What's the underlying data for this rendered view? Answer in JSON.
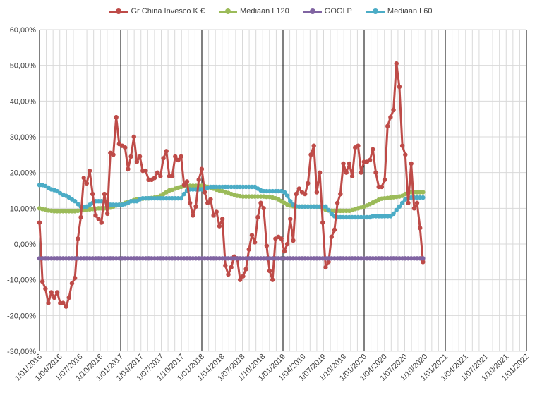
{
  "chart_data": {
    "type": "line",
    "title": "",
    "xlabel": "",
    "ylabel": "",
    "ylim": [
      -30,
      60
    ],
    "y_ticks": [
      "60,00%",
      "50,00%",
      "40,00%",
      "30,00%",
      "20,00%",
      "10,00%",
      "0,00%",
      "-10,00%",
      "-20,00%",
      "-30,00%"
    ],
    "x_tick_labels": [
      "1/01/2016",
      "1/04/2016",
      "1/07/2016",
      "1/10/2016",
      "1/01/2017",
      "1/04/2017",
      "1/07/2017",
      "1/10/2017",
      "1/01/2018",
      "1/04/2018",
      "1/07/2018",
      "1/10/2018",
      "1/01/2019",
      "1/04/2019",
      "1/07/2019",
      "1/10/2019",
      "1/01/2020",
      "1/04/2020",
      "1/07/2020",
      "1/10/2020",
      "1/01/2021",
      "1/04/2021",
      "1/07/2021",
      "1/10/2021",
      "1/01/2022"
    ],
    "x_range_months": [
      0,
      72
    ],
    "gridlines": "horizontal major, light vertical minor, black vertical at each year start",
    "legend_position": "top",
    "series": [
      {
        "name": "Gr China Invesco K €",
        "color": "#be4b48",
        "values": [
          6,
          -10.5,
          -12.5,
          -16.5,
          -13.5,
          -15,
          -13.5,
          -16.5,
          -16.5,
          -17.5,
          -15,
          -11,
          -9.5,
          1.5,
          7.5,
          18.5,
          17,
          20.5,
          14,
          8,
          7,
          6,
          14,
          8.5,
          25.5,
          25,
          35.5,
          28,
          27.5,
          27,
          21,
          24.5,
          30,
          23,
          24.5,
          20.5,
          20.5,
          18,
          18,
          18.5,
          20,
          19,
          24,
          26,
          19,
          19,
          24.5,
          23.5,
          24.5,
          16.5,
          17.5,
          11.5,
          8,
          10.5,
          18,
          21,
          14.5,
          11.5,
          12.5,
          8,
          9,
          5,
          7,
          -6,
          -8.5,
          -6.5,
          -3.5,
          -4,
          -10,
          -9,
          -7,
          -1.5,
          2.5,
          0.5,
          7.5,
          11.5,
          10,
          -0.5,
          -7.5,
          -10,
          1.5,
          2,
          1.5,
          -2,
          0,
          7,
          1,
          14,
          15.5,
          14.5,
          14,
          17,
          25,
          27.5,
          14.5,
          20,
          6,
          -6.5,
          -5,
          2,
          4,
          11.5,
          14,
          22.5,
          20,
          22.5,
          19,
          27,
          27.5,
          20,
          23,
          23,
          23.5,
          26.5,
          20,
          16,
          16,
          18,
          33,
          35.5,
          37.5,
          50.5,
          44,
          27.5,
          25,
          11.5,
          22.5,
          10,
          11.5,
          4.5,
          -5
        ]
      },
      {
        "name": "Mediaan L120",
        "color": "#9bbb59",
        "values": [
          10,
          9.8,
          9.6,
          9.4,
          9.3,
          9.2,
          9.2,
          9.2,
          9.2,
          9.2,
          9.2,
          9.2,
          9.2,
          9.3,
          9.4,
          9.5,
          9.6,
          9.7,
          9.8,
          9.9,
          10,
          10,
          10,
          10,
          10.2,
          10.5,
          10.8,
          11,
          11.2,
          11.5,
          11.8,
          12,
          12.3,
          12.5,
          12.6,
          12.7,
          12.8,
          12.8,
          12.9,
          13,
          13.2,
          13.5,
          14,
          14.5,
          15,
          15.2,
          15.5,
          15.8,
          16,
          16.2,
          16.3,
          16.3,
          16.3,
          16.3,
          16.3,
          16.3,
          16.2,
          16,
          15.8,
          15.5,
          15.2,
          15,
          14.8,
          14.5,
          14.3,
          14,
          13.8,
          13.5,
          13.4,
          13.3,
          13.3,
          13.3,
          13.3,
          13.3,
          13.3,
          13.3,
          13.3,
          13.2,
          13.2,
          13,
          12.8,
          12.5,
          12,
          11.5,
          11,
          10.8,
          10.6,
          10.5,
          10.5,
          10.5,
          10.5,
          10.5,
          10.5,
          10.5,
          10.5,
          10.3,
          10,
          9.6,
          9.4,
          9.3,
          9.3,
          9.3,
          9.3,
          9.3,
          9.3,
          9.3,
          9.5,
          9.8,
          10,
          10.2,
          10.5,
          10.8,
          11.2,
          11.6,
          12,
          12.4,
          12.7,
          12.8,
          12.9,
          13,
          13.1,
          13.2,
          13.3,
          13.5,
          14,
          14.3,
          14.5,
          14.5,
          14.5,
          14.5,
          14.5
        ]
      },
      {
        "name": "GOGI P",
        "color": "#8064a2",
        "values": [
          -4,
          -4,
          -4,
          -4,
          -4,
          -4,
          -4,
          -4,
          -4,
          -4,
          -4,
          -4,
          -4,
          -4,
          -4,
          -4,
          -4,
          -4,
          -4,
          -4,
          -4,
          -4,
          -4,
          -4,
          -4,
          -4,
          -4,
          -4,
          -4,
          -4,
          -4,
          -4,
          -4,
          -4,
          -4,
          -4,
          -4,
          -4,
          -4,
          -4,
          -4,
          -4,
          -4,
          -4,
          -4,
          -4,
          -4,
          -4,
          -4,
          -4,
          -4,
          -4,
          -4,
          -4,
          -4,
          -4,
          -4,
          -4,
          -4,
          -4,
          -4,
          -4,
          -4,
          -4,
          -4,
          -4,
          -4,
          -4,
          -4,
          -4,
          -4,
          -4,
          -4,
          -4,
          -4,
          -4,
          -4,
          -4,
          -4,
          -4,
          -4,
          -4,
          -4,
          -4,
          -4,
          -4,
          -4,
          -4,
          -4,
          -4,
          -4,
          -4,
          -4,
          -4,
          -4,
          -4,
          -4,
          -4,
          -4,
          -4,
          -4,
          -4,
          -4,
          -4,
          -4,
          -4,
          -4,
          -4,
          -4,
          -4,
          -4,
          -4,
          -4,
          -4,
          -4,
          -4,
          -4,
          -4,
          -4,
          -4,
          -4,
          -4,
          -4,
          -4,
          -4,
          -4,
          -4,
          -4,
          -4,
          -4,
          -4
        ]
      },
      {
        "name": "Mediaan L60",
        "color": "#4bacc6",
        "values": [
          16.5,
          16.5,
          16.2,
          15.8,
          15.3,
          15.1,
          14.8,
          14.2,
          13.8,
          13.5,
          13,
          12.5,
          12,
          11.2,
          10.5,
          10.3,
          10.5,
          11,
          11.5,
          12,
          12,
          12,
          12,
          11.5,
          11,
          11,
          11,
          11,
          11,
          11.2,
          11.5,
          12,
          12,
          12,
          12.5,
          12.8,
          12.8,
          12.8,
          12.8,
          12.8,
          12.8,
          12.8,
          12.8,
          12.8,
          12.8,
          12.8,
          12.8,
          12.8,
          12.8,
          14,
          15,
          15.3,
          15.3,
          15.3,
          15.3,
          15.3,
          15.5,
          15.8,
          16,
          16,
          16,
          16,
          16,
          16,
          16,
          16,
          16,
          16,
          16,
          16,
          16,
          16,
          16,
          16,
          15.5,
          15,
          14.8,
          14.8,
          14.8,
          14.8,
          14.8,
          14.8,
          14.8,
          14.5,
          13.5,
          12,
          11,
          10.6,
          10.5,
          10.5,
          10.5,
          10.5,
          10.5,
          10.5,
          10.5,
          10.5,
          10.5,
          10.5,
          9.5,
          8.5,
          7.8,
          7.5,
          7.5,
          7.5,
          7.5,
          7.5,
          7.5,
          7.5,
          7.5,
          7.5,
          7.5,
          7.5,
          7.5,
          7.8,
          7.8,
          7.8,
          7.8,
          7.8,
          7.8,
          7.8,
          8.5,
          9.5,
          10.5,
          11.5,
          12.5,
          12.8,
          13,
          13,
          13,
          13,
          13
        ]
      }
    ]
  }
}
